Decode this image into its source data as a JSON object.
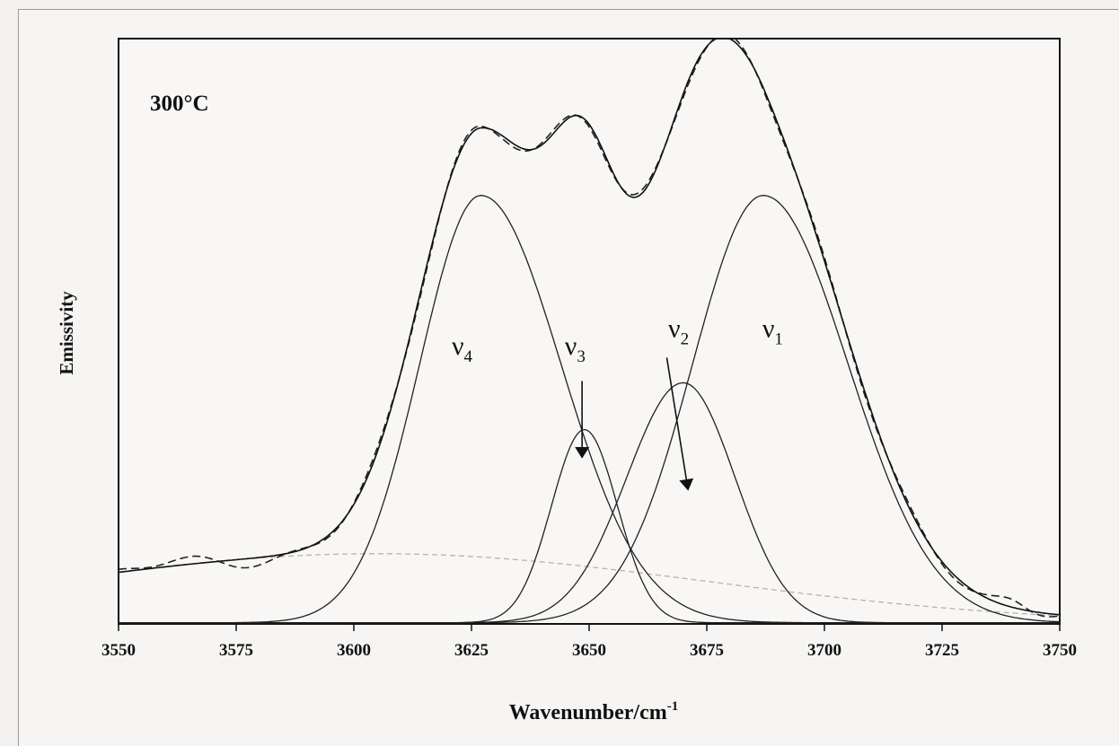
{
  "chart_data": {
    "type": "line",
    "annotation": "300°C",
    "xlabel": "Wavenumber/cm",
    "xlabel_superscript": "-1",
    "ylabel": "Emissivity",
    "xlim": [
      3550,
      3750
    ],
    "ylim": [
      0,
      1.0
    ],
    "x_ticks": [
      3550,
      3575,
      3600,
      3625,
      3650,
      3675,
      3700,
      3725,
      3750
    ],
    "grid": false,
    "components": [
      {
        "label": "ν",
        "sub": "1",
        "center": 3687,
        "amplitude": 0.73,
        "width_left": 15,
        "width_right": 18
      },
      {
        "label": "ν",
        "sub": "2",
        "center": 3670,
        "amplitude": 0.41,
        "width_left": 12,
        "width_right": 11
      },
      {
        "label": "ν",
        "sub": "3",
        "center": 3649,
        "amplitude": 0.33,
        "width_left": 7,
        "width_right": 7
      },
      {
        "label": "ν",
        "sub": "4",
        "center": 3627,
        "amplitude": 0.73,
        "width_left": 13,
        "width_right": 17
      }
    ],
    "background": {
      "center": 3605,
      "amplitude": 0.12,
      "width": 70
    },
    "series": [
      {
        "style": "solid",
        "role": "fitted envelope"
      },
      {
        "style": "dashed",
        "role": "experimental spectrum"
      },
      {
        "style": "dashed-light",
        "role": "baseline"
      }
    ]
  }
}
